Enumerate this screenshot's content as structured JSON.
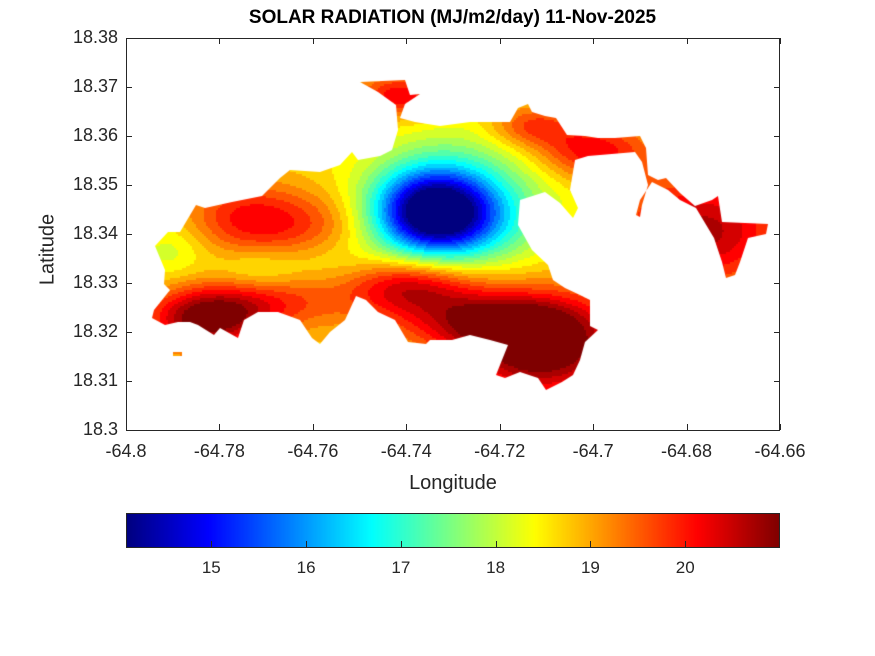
{
  "chart_data": {
    "type": "heatmap",
    "subtype": "filled-contour-map",
    "title": "SOLAR RADIATION (MJ/m2/day) 11-Nov-2025",
    "xlabel": "Longitude",
    "ylabel": "Latitude",
    "xlim": [
      -64.8,
      -64.66
    ],
    "ylim": [
      18.3,
      18.38
    ],
    "xticks": [
      -64.8,
      -64.78,
      -64.76,
      -64.74,
      -64.72,
      -64.7,
      -64.68,
      -64.66
    ],
    "xtick_labels": [
      "-64.8",
      "-64.78",
      "-64.76",
      "-64.74",
      "-64.72",
      "-64.7",
      "-64.68",
      "-64.66"
    ],
    "yticks": [
      18.3,
      18.31,
      18.32,
      18.33,
      18.34,
      18.35,
      18.36,
      18.37,
      18.38
    ],
    "ytick_labels": [
      "18.3",
      "18.31",
      "18.32",
      "18.33",
      "18.34",
      "18.35",
      "18.36",
      "18.37",
      "18.38"
    ],
    "grid": false,
    "colormap": "jet",
    "colorbar": {
      "location": "bottom",
      "range": [
        14.1,
        21.0
      ],
      "ticks": [
        15,
        16,
        17,
        18,
        19,
        20
      ],
      "tick_labels": [
        "15",
        "16",
        "17",
        "18",
        "19",
        "20"
      ]
    },
    "features": [
      {
        "name": "minimum",
        "lon": -64.733,
        "lat": 18.3445,
        "value": 14.2
      },
      {
        "name": "maximum-south",
        "lon": -64.712,
        "lat": 18.314,
        "value": 20.9
      },
      {
        "name": "maximum-southwest",
        "lon": -64.79,
        "lat": 18.323,
        "value": 20.5
      },
      {
        "name": "maximum-east",
        "lon": -64.668,
        "lat": 18.34,
        "value": 20.3
      },
      {
        "name": "orange-northwest-band",
        "lon": -64.765,
        "lat": 18.341,
        "value": 19.5
      },
      {
        "name": "red-central-south",
        "lon": -64.728,
        "lat": 18.329,
        "value": 20.0
      }
    ]
  }
}
